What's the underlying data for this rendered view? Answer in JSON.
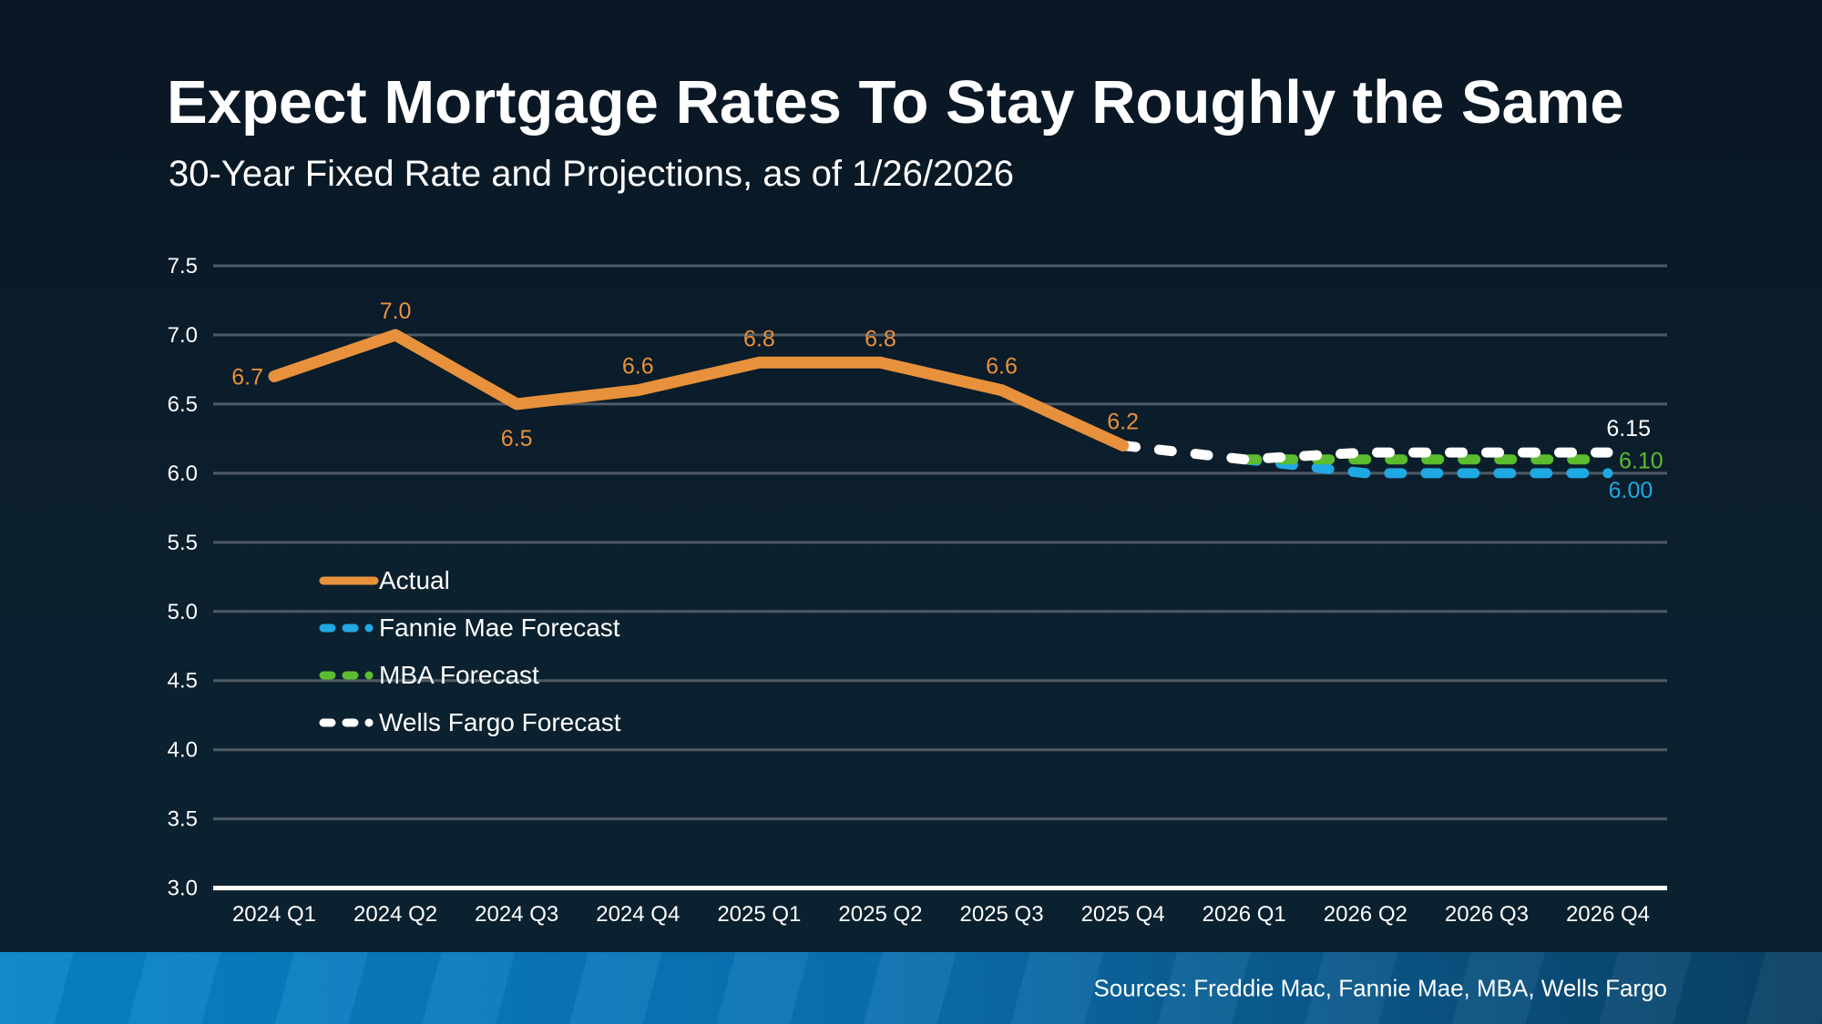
{
  "slide": {
    "title": "Expect Mortgage Rates To Stay Roughly the Same",
    "subtitle": "30-Year Fixed Rate and Projections, as of 1/26/2026",
    "sources": "Sources: Freddie Mac, Fannie Mae, MBA, Wells Fargo"
  },
  "colors": {
    "background_top": "#091623",
    "background_bottom": "#0c212f",
    "text": "#FFFFFF",
    "gridline": "#4E5A64",
    "axis_line": "#FFFFFF",
    "actual": "#E8913C",
    "fannie_mae": "#1FA8E2",
    "mba": "#5ABC2E",
    "wells_fargo": "#FFFFFF",
    "footer_left": "#0884C8",
    "footer_right": "#093F63"
  },
  "legend": {
    "items": [
      {
        "label": "Actual",
        "style": "solid",
        "color": "#E8913C"
      },
      {
        "label": "Fannie Mae Forecast",
        "style": "dashed",
        "color": "#1FA8E2"
      },
      {
        "label": "MBA Forecast",
        "style": "dashed",
        "color": "#5ABC2E"
      },
      {
        "label": "Wells Fargo Forecast",
        "style": "dashed",
        "color": "#FFFFFF"
      }
    ]
  },
  "chart_data": {
    "type": "line",
    "title": "Expect Mortgage Rates To Stay Roughly the Same",
    "subtitle": "30-Year Fixed Rate and Projections, as of 1/26/2026",
    "xlabel": "",
    "ylabel": "",
    "ylim": [
      3.0,
      7.5
    ],
    "ytick_step": 0.5,
    "grid": true,
    "legend_position": "inside-left-middle",
    "categories": [
      "2024 Q1",
      "2024 Q2",
      "2024 Q3",
      "2024 Q4",
      "2025 Q1",
      "2025 Q2",
      "2025 Q3",
      "2025 Q4",
      "2026 Q1",
      "2026 Q2",
      "2026 Q3",
      "2026 Q4"
    ],
    "series": [
      {
        "name": "Actual",
        "style": "solid",
        "color": "#E8913C",
        "start_index": 0,
        "values": [
          6.7,
          7.0,
          6.5,
          6.6,
          6.8,
          6.8,
          6.6,
          6.2
        ],
        "point_labels": [
          "6.7",
          "7.0",
          "6.5",
          "6.6",
          "6.8",
          "6.8",
          "6.6",
          "6.2"
        ],
        "label_positions": [
          "left",
          "above",
          "below",
          "above",
          "above",
          "above",
          "above",
          "above"
        ]
      },
      {
        "name": "Fannie Mae Forecast",
        "style": "dashed",
        "color": "#1FA8E2",
        "start_index": 8,
        "values": [
          6.1,
          6.0,
          6.0,
          6.0
        ],
        "end_label": "6.00",
        "end_label_position": "below-right"
      },
      {
        "name": "MBA Forecast",
        "style": "dashed",
        "color": "#5ABC2E",
        "start_index": 8,
        "values": [
          6.1,
          6.1,
          6.1,
          6.1
        ],
        "end_label": "6.10",
        "end_label_position": "right"
      },
      {
        "name": "Wells Fargo Forecast",
        "style": "dashed",
        "color": "#FFFFFF",
        "start_index": 7,
        "values": [
          6.2,
          6.1,
          6.15,
          6.15,
          6.15
        ],
        "end_label": "6.15",
        "end_label_position": "above-right"
      }
    ]
  }
}
